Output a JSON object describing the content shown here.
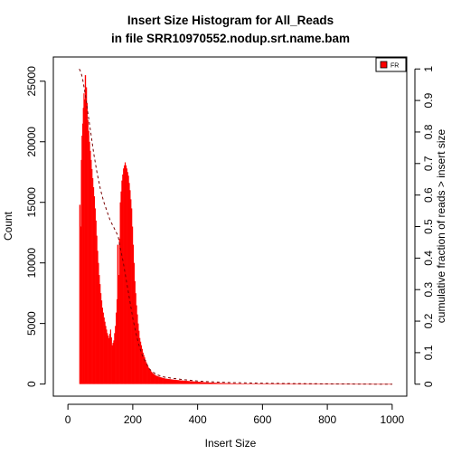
{
  "chart_data": {
    "type": "bar",
    "title": [
      "Insert Size Histogram for All_Reads",
      "in file SRR10970552.nodup.srt.name.bam"
    ],
    "xlabel": "Insert Size",
    "ylabel": "Count",
    "y2label": "cumulative fraction of reads > insert size",
    "xlim": [
      -45,
      1045
    ],
    "ylim": [
      -1000,
      27000
    ],
    "y2lim": [
      -0.038,
      1.038
    ],
    "xticks": [
      "0",
      "200",
      "400",
      "600",
      "800",
      "1000"
    ],
    "yticks": [
      "0",
      "5000",
      "10000",
      "15000",
      "20000",
      "25000"
    ],
    "y2ticks": [
      "0",
      "0.1",
      "0.2",
      "0.3",
      "0.4",
      "0.5",
      "0.6",
      "0.7",
      "0.8",
      "0.9",
      "1"
    ],
    "legend": {
      "position": "top-right",
      "entries": [
        {
          "name": "FR",
          "color": "#ff0000"
        }
      ]
    },
    "bar_color": "#ff0000",
    "cumulative_color": "#7a0000",
    "series": [
      {
        "name": "FR",
        "x": [
          35,
          38,
          40,
          42,
          44,
          46,
          48,
          50,
          52,
          55,
          58,
          60,
          65,
          70,
          75,
          80,
          85,
          90,
          95,
          100,
          105,
          110,
          115,
          120,
          125,
          130,
          135,
          140,
          145,
          150,
          152,
          155,
          160,
          165,
          170,
          175,
          180,
          185,
          190,
          195,
          200,
          205,
          210,
          215,
          220,
          230,
          240,
          250,
          260,
          270,
          280,
          290,
          300,
          320,
          340,
          360,
          380,
          400,
          420,
          440,
          460,
          480,
          500,
          550,
          600,
          650,
          700,
          750,
          800,
          850,
          900,
          950,
          1000
        ],
        "values": [
          14800,
          13000,
          18500,
          20500,
          21500,
          22800,
          24000,
          23500,
          25500,
          24500,
          23200,
          21800,
          20000,
          18500,
          17000,
          15500,
          13500,
          11000,
          9000,
          7500,
          6300,
          5500,
          4800,
          4200,
          3800,
          4500,
          3200,
          3600,
          4800,
          7000,
          11500,
          9000,
          15000,
          16800,
          17800,
          18300,
          17800,
          17200,
          16000,
          14500,
          11500,
          8500,
          6500,
          5000,
          3800,
          2600,
          1800,
          1200,
          900,
          700,
          600,
          520,
          450,
          380,
          320,
          270,
          230,
          190,
          150,
          120,
          95,
          75,
          60,
          40,
          30,
          22,
          16,
          12,
          9,
          7,
          5,
          4,
          3
        ]
      },
      {
        "name": "cumulative",
        "x": [
          35,
          40,
          45,
          50,
          55,
          60,
          70,
          80,
          90,
          100,
          110,
          120,
          130,
          140,
          150,
          155,
          160,
          170,
          180,
          190,
          200,
          210,
          220,
          230,
          240,
          250,
          260,
          270,
          280,
          300,
          350,
          400,
          450,
          500,
          600,
          700,
          800,
          900,
          1000
        ],
        "values": [
          1.0,
          0.99,
          0.97,
          0.94,
          0.91,
          0.87,
          0.8,
          0.73,
          0.67,
          0.62,
          0.58,
          0.55,
          0.52,
          0.5,
          0.48,
          0.47,
          0.44,
          0.39,
          0.33,
          0.27,
          0.21,
          0.16,
          0.12,
          0.09,
          0.07,
          0.05,
          0.04,
          0.033,
          0.028,
          0.022,
          0.015,
          0.01,
          0.007,
          0.005,
          0.003,
          0.002,
          0.001,
          0.0005,
          0.0
        ]
      }
    ]
  }
}
